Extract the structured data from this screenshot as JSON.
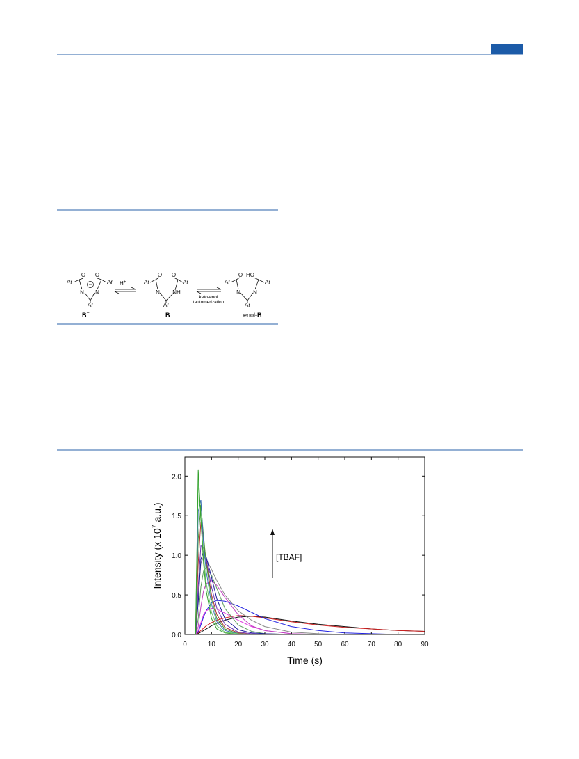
{
  "scheme": {
    "compounds": [
      {
        "atoms": [
          "Ar",
          "O",
          "O",
          "Ar",
          "N",
          "N",
          "Ar"
        ],
        "label": "B",
        "label_sup": "−"
      },
      {
        "atoms": [
          "Ar",
          "O",
          "O",
          "Ar",
          "N",
          "NH",
          "Ar"
        ],
        "label": "B"
      },
      {
        "atoms": [
          "Ar",
          "O",
          "HO",
          "Ar",
          "N",
          "N",
          "Ar"
        ],
        "label_prefix": "enol-",
        "label": "B"
      }
    ],
    "arrows": [
      {
        "label": "H",
        "label_sup": "+"
      },
      {
        "label": "keto-enol",
        "label2": "tautomerization"
      }
    ]
  },
  "chart_data": {
    "type": "line",
    "xlabel": "Time (s)",
    "ylabel": [
      "Intensity (x 10",
      "7",
      " a.u.)"
    ],
    "annotation": "[TBAF]",
    "xlim": [
      0,
      90
    ],
    "ylim": [
      0,
      2.24
    ],
    "xticks": [
      0,
      10,
      20,
      30,
      40,
      50,
      60,
      70,
      80,
      90
    ],
    "yticks": [
      {
        "value": 0,
        "label": "0.0"
      },
      {
        "value": 0.5,
        "label": "0.5"
      },
      {
        "value": 1,
        "label": "1.0"
      },
      {
        "value": 1.5,
        "label": "1.5"
      },
      {
        "value": 2,
        "label": "2.0"
      }
    ],
    "x": [
      4,
      5,
      6,
      7,
      8,
      10,
      12,
      15,
      20,
      25,
      30,
      40,
      50,
      60,
      70,
      80,
      90
    ],
    "series": [
      {
        "color": "#111111",
        "values": [
          0,
          0.01,
          0.03,
          0.05,
          0.07,
          0.11,
          0.14,
          0.18,
          0.22,
          0.23,
          0.22,
          0.17,
          0.13,
          0.1,
          0.07,
          0.05,
          0.04
        ]
      },
      {
        "color": "#d02020",
        "values": [
          0,
          0.02,
          0.05,
          0.08,
          0.11,
          0.15,
          0.18,
          0.21,
          0.24,
          0.23,
          0.21,
          0.16,
          0.12,
          0.09,
          0.07,
          0.05,
          0.04
        ]
      },
      {
        "color": "#2020e0",
        "values": [
          0,
          0.03,
          0.12,
          0.22,
          0.3,
          0.4,
          0.43,
          0.42,
          0.36,
          0.28,
          0.2,
          0.1,
          0.05,
          0.02,
          0.01,
          0,
          0
        ]
      },
      {
        "color": "#e040e0",
        "values": [
          0,
          0.05,
          0.15,
          0.25,
          0.3,
          0.33,
          0.32,
          0.27,
          0.18,
          0.1,
          0.05,
          0.01,
          0,
          0,
          0,
          0,
          0
        ]
      },
      {
        "color": "#c040c0",
        "values": [
          0,
          0.1,
          0.35,
          0.55,
          0.64,
          0.68,
          0.62,
          0.47,
          0.25,
          0.11,
          0.05,
          0.01,
          0,
          0,
          0,
          0,
          0
        ]
      },
      {
        "color": "#5a9a5a",
        "values": [
          0,
          0.2,
          0.6,
          0.8,
          0.85,
          0.75,
          0.58,
          0.33,
          0.12,
          0.04,
          0.01,
          0,
          0,
          0,
          0,
          0,
          0
        ]
      },
      {
        "color": "#888888",
        "values": [
          0,
          0.5,
          0.9,
          0.98,
          0.95,
          0.82,
          0.68,
          0.5,
          0.3,
          0.18,
          0.1,
          0.03,
          0.01,
          0,
          0,
          0,
          0
        ]
      },
      {
        "color": "#1a1a9a",
        "values": [
          0,
          0.4,
          0.95,
          1.05,
          0.98,
          0.72,
          0.45,
          0.2,
          0.06,
          0.02,
          0.01,
          0,
          0,
          0,
          0,
          0,
          0
        ]
      },
      {
        "color": "#6a2fb0",
        "values": [
          0,
          0.6,
          1.12,
          1.1,
          0.95,
          0.6,
          0.33,
          0.13,
          0.03,
          0.01,
          0,
          0,
          0,
          0,
          0,
          0,
          0
        ]
      },
      {
        "color": "#b03030",
        "values": [
          0,
          0.9,
          1.42,
          1.2,
          0.92,
          0.5,
          0.25,
          0.09,
          0.02,
          0,
          0,
          0,
          0,
          0,
          0,
          0,
          0
        ]
      },
      {
        "color": "#4a9a3a",
        "values": [
          0,
          1.2,
          1.63,
          1.25,
          0.9,
          0.45,
          0.2,
          0.07,
          0.01,
          0,
          0,
          0,
          0,
          0,
          0,
          0,
          0
        ]
      },
      {
        "color": "#3b6fb6",
        "values": [
          0,
          1.55,
          1.7,
          1.15,
          0.8,
          0.38,
          0.16,
          0.05,
          0.01,
          0,
          0,
          0,
          0,
          0,
          0,
          0,
          0
        ]
      },
      {
        "color": "#66c266",
        "values": [
          0,
          1.93,
          1.5,
          1.0,
          0.65,
          0.28,
          0.11,
          0.03,
          0.01,
          0,
          0,
          0,
          0,
          0,
          0,
          0,
          0
        ]
      },
      {
        "color": "#33a02c",
        "values": [
          0,
          2.08,
          1.45,
          0.9,
          0.55,
          0.2,
          0.07,
          0.02,
          0,
          0,
          0,
          0,
          0,
          0,
          0,
          0,
          0
        ]
      }
    ]
  }
}
